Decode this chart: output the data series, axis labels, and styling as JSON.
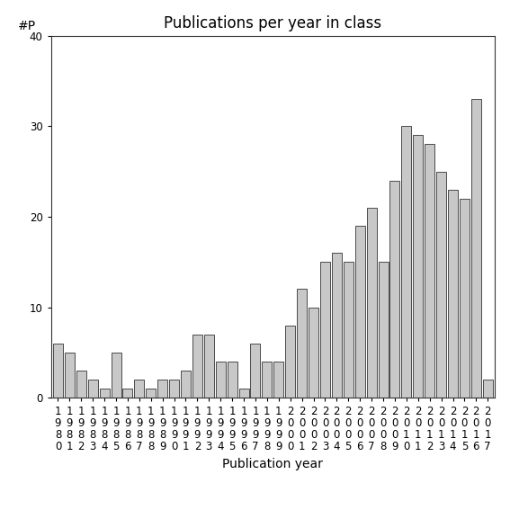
{
  "title": "Publications per year in class",
  "xlabel": "Publication year",
  "ylabel": "#P",
  "years": [
    "1980",
    "1981",
    "1982",
    "1983",
    "1984",
    "1985",
    "1986",
    "1987",
    "1988",
    "1989",
    "1990",
    "1991",
    "1992",
    "1993",
    "1994",
    "1995",
    "1996",
    "1997",
    "1998",
    "1999",
    "2000",
    "2001",
    "2002",
    "2003",
    "2004",
    "2005",
    "2006",
    "2007",
    "2008",
    "2009",
    "2010",
    "2011",
    "2012",
    "2013",
    "2014",
    "2015",
    "2016",
    "2017"
  ],
  "values": [
    6,
    5,
    3,
    2,
    1,
    5,
    1,
    2,
    1,
    2,
    2,
    3,
    7,
    7,
    4,
    4,
    1,
    6,
    4,
    4,
    8,
    12,
    10,
    15,
    16,
    15,
    19,
    21,
    15,
    24,
    30,
    29,
    28,
    25,
    23,
    22,
    33,
    2
  ],
  "ylim": [
    0,
    40
  ],
  "yticks": [
    0,
    10,
    20,
    30,
    40
  ],
  "bar_color": "#c8c8c8",
  "bar_edgecolor": "#333333",
  "background_color": "#ffffff",
  "title_fontsize": 12,
  "label_fontsize": 10,
  "tick_fontsize": 8.5
}
